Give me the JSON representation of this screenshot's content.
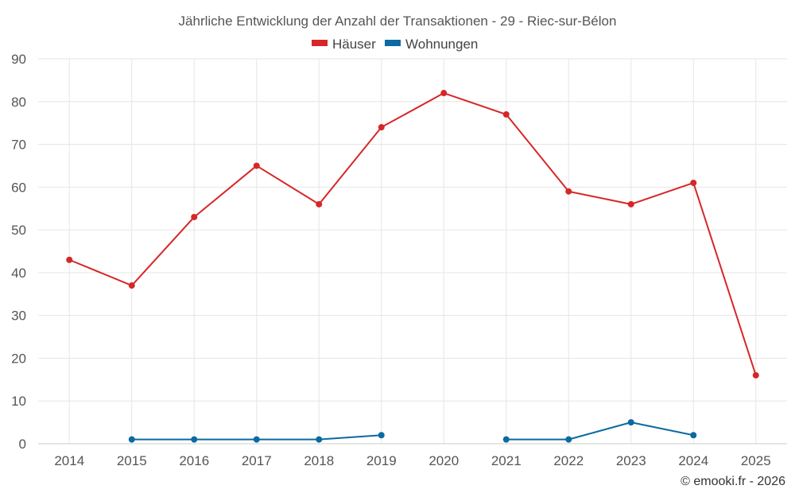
{
  "chart_data": {
    "type": "line",
    "title": "Jährliche Entwicklung der Anzahl der Transaktionen - 29 - Riec-sur-Bélon",
    "categories": [
      "2014",
      "2015",
      "2016",
      "2017",
      "2018",
      "2019",
      "2020",
      "2021",
      "2022",
      "2023",
      "2024",
      "2025"
    ],
    "ylim": [
      0,
      90
    ],
    "yticks": [
      0,
      10,
      20,
      30,
      40,
      50,
      60,
      70,
      80,
      90
    ],
    "grid": true,
    "legend_position": "top-center",
    "series": [
      {
        "name": "Häuser",
        "color": "#d62728",
        "values": [
          43,
          37,
          53,
          65,
          56,
          74,
          82,
          77,
          59,
          56,
          61,
          16
        ]
      },
      {
        "name": "Wohnungen",
        "color": "#0a6aa1",
        "values": [
          null,
          1,
          1,
          1,
          1,
          2,
          null,
          1,
          1,
          5,
          2,
          null
        ]
      }
    ]
  },
  "credit": "© emooki.fr - 2026"
}
